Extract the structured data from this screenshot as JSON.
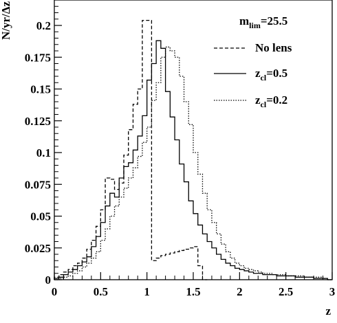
{
  "chart_data": {
    "type": "line",
    "step": true,
    "xlabel": "z",
    "ylabel": "N/yr/Δz",
    "xlim": [
      0,
      3
    ],
    "ylim": [
      0,
      0.22
    ],
    "x_ticks": [
      {
        "v": 0,
        "label": "0"
      },
      {
        "v": 0.5,
        "label": "0.5"
      },
      {
        "v": 1,
        "label": "1"
      },
      {
        "v": 1.5,
        "label": "1.5"
      },
      {
        "v": 2,
        "label": "2"
      },
      {
        "v": 2.5,
        "label": "2.5"
      },
      {
        "v": 3,
        "label": "3"
      }
    ],
    "y_ticks": [
      {
        "v": 0,
        "label": "0"
      },
      {
        "v": 0.025,
        "label": "0.025"
      },
      {
        "v": 0.05,
        "label": "0.05"
      },
      {
        "v": 0.075,
        "label": "0.075"
      },
      {
        "v": 0.1,
        "label": "0.1"
      },
      {
        "v": 0.125,
        "label": "0.125"
      },
      {
        "v": 0.15,
        "label": "0.15"
      },
      {
        "v": 0.175,
        "label": "0.175"
      },
      {
        "v": 0.2,
        "label": "0.2"
      }
    ],
    "annotation": {
      "main": "m",
      "sub": "lim",
      "rest": "=25.5"
    },
    "legend_position": "top-right",
    "series": [
      {
        "name": "No lens",
        "legend_main": "No lens",
        "legend_sub": "",
        "legend_rest": "",
        "dash": "5,3",
        "bins": [
          [
            0,
            0.002
          ],
          [
            0.05,
            0.004
          ],
          [
            0.1,
            0.006
          ],
          [
            0.15,
            0.008
          ],
          [
            0.2,
            0.011
          ],
          [
            0.25,
            0.013
          ],
          [
            0.3,
            0.017
          ],
          [
            0.35,
            0.024
          ],
          [
            0.4,
            0.031
          ],
          [
            0.45,
            0.042
          ],
          [
            0.5,
            0.055
          ],
          [
            0.55,
            0.08
          ],
          [
            0.6,
            0.079
          ],
          [
            0.65,
            0.071
          ],
          [
            0.7,
            0.076
          ],
          [
            0.75,
            0.098
          ],
          [
            0.8,
            0.118
          ],
          [
            0.85,
            0.138
          ],
          [
            0.9,
            0.15
          ],
          [
            0.95,
            0.204
          ],
          [
            1.0,
            0.204
          ],
          [
            1.05,
            0.015
          ],
          [
            1.1,
            0.017
          ],
          [
            1.15,
            0.019
          ],
          [
            1.2,
            0.02
          ],
          [
            1.25,
            0.021
          ],
          [
            1.3,
            0.022
          ],
          [
            1.35,
            0.023
          ],
          [
            1.4,
            0.024
          ],
          [
            1.45,
            0.025
          ],
          [
            1.5,
            0.026
          ],
          [
            1.55,
            0.011
          ],
          [
            1.6,
            0.0
          ]
        ]
      },
      {
        "name": "z_cl=0.5",
        "legend_main": "z",
        "legend_sub": "cl",
        "legend_rest": "=0.5",
        "dash": "",
        "bins": [
          [
            0,
            0.001
          ],
          [
            0.05,
            0.002
          ],
          [
            0.1,
            0.004
          ],
          [
            0.15,
            0.006
          ],
          [
            0.2,
            0.008
          ],
          [
            0.25,
            0.011
          ],
          [
            0.3,
            0.014
          ],
          [
            0.35,
            0.018
          ],
          [
            0.4,
            0.026
          ],
          [
            0.45,
            0.034
          ],
          [
            0.5,
            0.045
          ],
          [
            0.55,
            0.058
          ],
          [
            0.6,
            0.068
          ],
          [
            0.65,
            0.065
          ],
          [
            0.7,
            0.08
          ],
          [
            0.75,
            0.089
          ],
          [
            0.8,
            0.092
          ],
          [
            0.85,
            0.102
          ],
          [
            0.9,
            0.113
          ],
          [
            0.95,
            0.129
          ],
          [
            1.0,
            0.157
          ],
          [
            1.05,
            0.17
          ],
          [
            1.1,
            0.188
          ],
          [
            1.15,
            0.182
          ],
          [
            1.2,
            0.148
          ],
          [
            1.25,
            0.128
          ],
          [
            1.3,
            0.11
          ],
          [
            1.35,
            0.091
          ],
          [
            1.4,
            0.077
          ],
          [
            1.45,
            0.062
          ],
          [
            1.5,
            0.052
          ],
          [
            1.55,
            0.043
          ],
          [
            1.6,
            0.036
          ],
          [
            1.65,
            0.03
          ],
          [
            1.7,
            0.025
          ],
          [
            1.75,
            0.02
          ],
          [
            1.8,
            0.016
          ],
          [
            1.85,
            0.013
          ],
          [
            1.9,
            0.011
          ],
          [
            1.95,
            0.009
          ],
          [
            2.0,
            0.008
          ],
          [
            2.05,
            0.007
          ],
          [
            2.1,
            0.006
          ],
          [
            2.15,
            0.005
          ],
          [
            2.2,
            0.005
          ],
          [
            2.25,
            0.004
          ],
          [
            2.3,
            0.004
          ],
          [
            2.35,
            0.004
          ],
          [
            2.4,
            0.003
          ],
          [
            2.45,
            0.003
          ],
          [
            2.5,
            0.003
          ],
          [
            2.55,
            0.003
          ],
          [
            2.6,
            0.002
          ],
          [
            2.65,
            0.002
          ],
          [
            2.7,
            0.002
          ],
          [
            2.75,
            0.002
          ],
          [
            2.8,
            0.001
          ],
          [
            2.85,
            0.001
          ],
          [
            2.9,
            0.001
          ],
          [
            2.95,
            0.0
          ]
        ]
      },
      {
        "name": "z_cl=0.2",
        "legend_main": "z",
        "legend_sub": "cl",
        "legend_rest": "=0.2",
        "dash": "1.5,2",
        "bins": [
          [
            0,
            0.0
          ],
          [
            0.05,
            0.001
          ],
          [
            0.1,
            0.002
          ],
          [
            0.15,
            0.003
          ],
          [
            0.2,
            0.005
          ],
          [
            0.25,
            0.007
          ],
          [
            0.3,
            0.01
          ],
          [
            0.35,
            0.013
          ],
          [
            0.4,
            0.017
          ],
          [
            0.45,
            0.022
          ],
          [
            0.5,
            0.031
          ],
          [
            0.55,
            0.04
          ],
          [
            0.6,
            0.05
          ],
          [
            0.65,
            0.058
          ],
          [
            0.7,
            0.065
          ],
          [
            0.75,
            0.072
          ],
          [
            0.8,
            0.08
          ],
          [
            0.85,
            0.088
          ],
          [
            0.9,
            0.097
          ],
          [
            0.95,
            0.108
          ],
          [
            1.0,
            0.12
          ],
          [
            1.05,
            0.141
          ],
          [
            1.1,
            0.155
          ],
          [
            1.15,
            0.175
          ],
          [
            1.2,
            0.183
          ],
          [
            1.25,
            0.18
          ],
          [
            1.3,
            0.175
          ],
          [
            1.35,
            0.16
          ],
          [
            1.4,
            0.14
          ],
          [
            1.45,
            0.122
          ],
          [
            1.5,
            0.1
          ],
          [
            1.55,
            0.083
          ],
          [
            1.6,
            0.068
          ],
          [
            1.65,
            0.055
          ],
          [
            1.7,
            0.045
          ],
          [
            1.75,
            0.036
          ],
          [
            1.8,
            0.028
          ],
          [
            1.85,
            0.022
          ],
          [
            1.9,
            0.017
          ],
          [
            1.95,
            0.013
          ],
          [
            2.0,
            0.011
          ],
          [
            2.05,
            0.009
          ],
          [
            2.1,
            0.008
          ],
          [
            2.15,
            0.007
          ],
          [
            2.2,
            0.006
          ],
          [
            2.25,
            0.005
          ],
          [
            2.3,
            0.005
          ],
          [
            2.35,
            0.004
          ],
          [
            2.4,
            0.004
          ],
          [
            2.45,
            0.004
          ],
          [
            2.5,
            0.003
          ],
          [
            2.55,
            0.003
          ],
          [
            2.6,
            0.003
          ],
          [
            2.65,
            0.003
          ],
          [
            2.7,
            0.002
          ],
          [
            2.75,
            0.002
          ],
          [
            2.8,
            0.002
          ],
          [
            2.85,
            0.002
          ],
          [
            2.9,
            0.001
          ],
          [
            2.95,
            0.0
          ]
        ]
      }
    ]
  }
}
